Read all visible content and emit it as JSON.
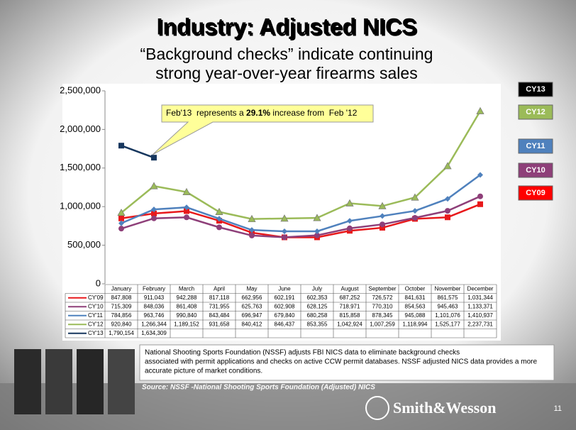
{
  "title": "Industry: Adjusted NICS",
  "subtitle": [
    "“Background checks” indicate continuing",
    "strong year-over-year firearms sales"
  ],
  "chart_data": {
    "type": "line",
    "categories": [
      "January",
      "February",
      "March",
      "April",
      "May",
      "June",
      "July",
      "August",
      "September",
      "October",
      "November",
      "December"
    ],
    "ylim": [
      0,
      2500000
    ],
    "yticks": [
      0,
      {
        "value": 500000,
        "label": "500,000"
      },
      {
        "value": 1000000,
        "label": "1,000,000"
      },
      {
        "value": 1500000,
        "label": "1,500,000"
      },
      {
        "value": 2000000,
        "label": "2,000,000"
      },
      {
        "value": 2500000,
        "label": "2,500,000"
      }
    ],
    "series": [
      {
        "name": "CY'09",
        "color": "#e8191b",
        "marker": "square",
        "values": [
          847808,
          911043,
          942288,
          817118,
          662956,
          602191,
          602353,
          687252,
          726572,
          841631,
          861575,
          1031344
        ],
        "value_labels": [
          "847,808",
          "911,043",
          "942,288",
          "817,118",
          "662,956",
          "602,191",
          "602,353",
          "687,252",
          "726,572",
          "841,631",
          "861,575",
          "1,031,344"
        ]
      },
      {
        "name": "CY'10",
        "color": "#8e3f79",
        "marker": "circle",
        "values": [
          715309,
          848036,
          861408,
          731955,
          625763,
          602908,
          628125,
          718971,
          770310,
          854563,
          945463,
          1133371
        ],
        "value_labels": [
          "715,309",
          "848,036",
          "861,408",
          "731,955",
          "625,763",
          "602,908",
          "628,125",
          "718,971",
          "770,310",
          "854,563",
          "945,463",
          "1,133,371"
        ]
      },
      {
        "name": "CY'11",
        "color": "#4f81bd",
        "marker": "diamond",
        "values": [
          784856,
          963746,
          990840,
          843484,
          696947,
          679840,
          680258,
          815858,
          878345,
          945088,
          1101076,
          1410937
        ],
        "value_labels": [
          "784,856",
          "963,746",
          "990,840",
          "843,484",
          "696,947",
          "679,840",
          "680,258",
          "815,858",
          "878,345",
          "945,088",
          "1,101,076",
          "1,410,937"
        ]
      },
      {
        "name": "CY'12",
        "color": "#9bbb59",
        "marker": "triangle",
        "values": [
          920840,
          1266344,
          1189152,
          931658,
          840412,
          846437,
          853355,
          1042924,
          1007259,
          1118994,
          1525177,
          2237731
        ],
        "value_labels": [
          "920,840",
          "1,266,344",
          "1,189,152",
          "931,658",
          "840,412",
          "846,437",
          "853,355",
          "1,042,924",
          "1,007,259",
          "1,118,994",
          "1,525,177",
          "2,237,731"
        ]
      },
      {
        "name": "CY'13",
        "color": "#17375e",
        "marker": "square",
        "values": [
          1790154,
          1634309,
          null,
          null,
          null,
          null,
          null,
          null,
          null,
          null,
          null,
          null
        ],
        "value_labels": [
          "1,790,154",
          "1,634,309",
          null,
          null,
          null,
          null,
          null,
          null,
          null,
          null,
          null,
          null
        ]
      }
    ],
    "annotation": {
      "before": "Feb'13  represents a ",
      "bold": "29.1%",
      "after": " increase from  Feb '12"
    },
    "legend": [
      {
        "label": "CY13",
        "color": "#000000"
      },
      {
        "label": "CY12",
        "color": "#9bbb59"
      },
      {
        "label": "CY11",
        "color": "#4f81bd"
      },
      {
        "label": "CY10",
        "color": "#8e3f79"
      },
      {
        "label": "CY09",
        "color": "#ff0000"
      }
    ]
  },
  "note": [
    "National Shooting Sports Foundation (NSSF) adjusts FBI NICS data to eliminate background checks",
    "associated with permit applications and checks on active CCW permit databases. NSSF adjusted NICS data provides a more",
    "accurate picture of market conditions."
  ],
  "source": "Source: NSSF -National Shooting Sports Foundation (Adjusted) NICS",
  "logo": "Smith&Wesson",
  "page_number": "11"
}
